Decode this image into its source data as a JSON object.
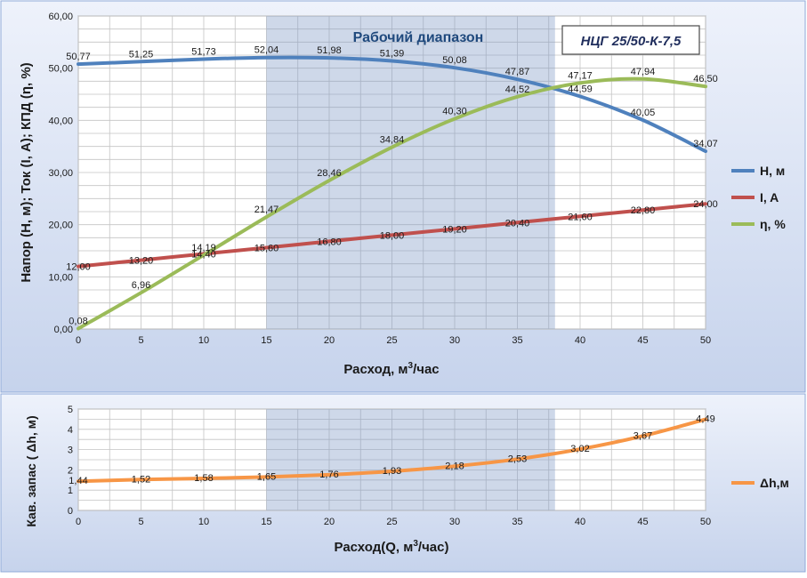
{
  "colors": {
    "panel_top": "#eef2fb",
    "panel_bottom": "#c6d3ec",
    "plot_bg": "#ffffff",
    "grid": "#c4c4c4",
    "band": "#7f98c6",
    "head": "#4f81bd",
    "current": "#c0504d",
    "efficiency": "#9bbb59",
    "npsh": "#f79646",
    "band_title": "#1f497d"
  },
  "chart_data": [
    {
      "type": "line",
      "id": "main",
      "title": "НЦГ 25/50-К-7,5",
      "band_label": "Рабочий диапазон",
      "band_range": [
        15,
        38
      ],
      "xlabel_prefix": "Расход, м",
      "xlabel_sup": "3",
      "xlabel_suffix": "/час",
      "ylabel": "Напор (Н, м); Ток (I, А); КПД (η, %)",
      "xlim": [
        0,
        50
      ],
      "ylim": [
        0,
        60
      ],
      "x_ticks": [
        0,
        5,
        10,
        15,
        20,
        25,
        30,
        35,
        40,
        45,
        50
      ],
      "x_tick_labels": [
        "0",
        "5",
        "10",
        "15",
        "20",
        "25",
        "30",
        "35",
        "40",
        "45",
        "50"
      ],
      "y_ticks": [
        0,
        10,
        20,
        30,
        40,
        50,
        60
      ],
      "y_tick_labels": [
        "0,00",
        "10,00",
        "20,00",
        "30,00",
        "40,00",
        "50,00",
        "60,00"
      ],
      "grid": true,
      "legend_position": "right",
      "x": [
        0,
        5,
        10,
        15,
        20,
        25,
        30,
        35,
        40,
        45,
        50
      ],
      "series": [
        {
          "name": "Н, м",
          "key": "head",
          "values": [
            50.77,
            51.25,
            51.73,
            52.04,
            51.98,
            51.39,
            50.08,
            47.87,
            44.59,
            40.05,
            34.07
          ],
          "labels": [
            "50,77",
            "51,25",
            "51,73",
            "52,04",
            "51,98",
            "51,39",
            "50,08",
            "47,87",
            "44,59",
            "40,05",
            "34,07"
          ]
        },
        {
          "name": "I, A",
          "key": "current",
          "values": [
            12.0,
            13.2,
            14.4,
            15.6,
            16.8,
            18.0,
            19.2,
            20.4,
            21.6,
            22.8,
            24.0
          ],
          "labels": [
            "12,00",
            "13,20",
            "14,40",
            "15,60",
            "16,80",
            "18,00",
            "19,20",
            "20,40",
            "21,60",
            "22,80",
            "24,00"
          ]
        },
        {
          "name": "η, %",
          "key": "efficiency",
          "values": [
            0.08,
            6.96,
            14.19,
            21.47,
            28.46,
            34.84,
            40.3,
            44.52,
            47.17,
            47.94,
            46.5
          ],
          "labels": [
            "0,08",
            "6,96",
            "14,19",
            "21,47",
            "28,46",
            "34,84",
            "40,30",
            "44,52",
            "47,17",
            "47,94",
            "46,50"
          ]
        }
      ]
    },
    {
      "type": "line",
      "id": "npsh",
      "xlabel_prefix": "Расход(Q, м",
      "xlabel_sup": "3",
      "xlabel_suffix": "/час)",
      "ylabel": "Кав. запас ( Δh, м)",
      "xlim": [
        0,
        50
      ],
      "ylim": [
        0,
        5
      ],
      "x_ticks": [
        0,
        5,
        10,
        15,
        20,
        25,
        30,
        35,
        40,
        45,
        50
      ],
      "x_tick_labels": [
        "0",
        "5",
        "10",
        "15",
        "20",
        "25",
        "30",
        "35",
        "40",
        "45",
        "50"
      ],
      "y_ticks": [
        0,
        1,
        2,
        3,
        4,
        5
      ],
      "y_tick_labels": [
        "0",
        "1",
        "2",
        "3",
        "4",
        "5"
      ],
      "grid": true,
      "legend_position": "right",
      "x": [
        0,
        5,
        10,
        15,
        20,
        25,
        30,
        35,
        40,
        45,
        50
      ],
      "series": [
        {
          "name": "Δh,м",
          "key": "npsh",
          "values": [
            1.44,
            1.52,
            1.58,
            1.65,
            1.76,
            1.93,
            2.18,
            2.53,
            3.02,
            3.67,
            4.49
          ],
          "labels": [
            "1,44",
            "1,52",
            "1,58",
            "1,65",
            "1,76",
            "1,93",
            "2,18",
            "2,53",
            "3,02",
            "3,67",
            "4,49"
          ]
        }
      ]
    }
  ]
}
